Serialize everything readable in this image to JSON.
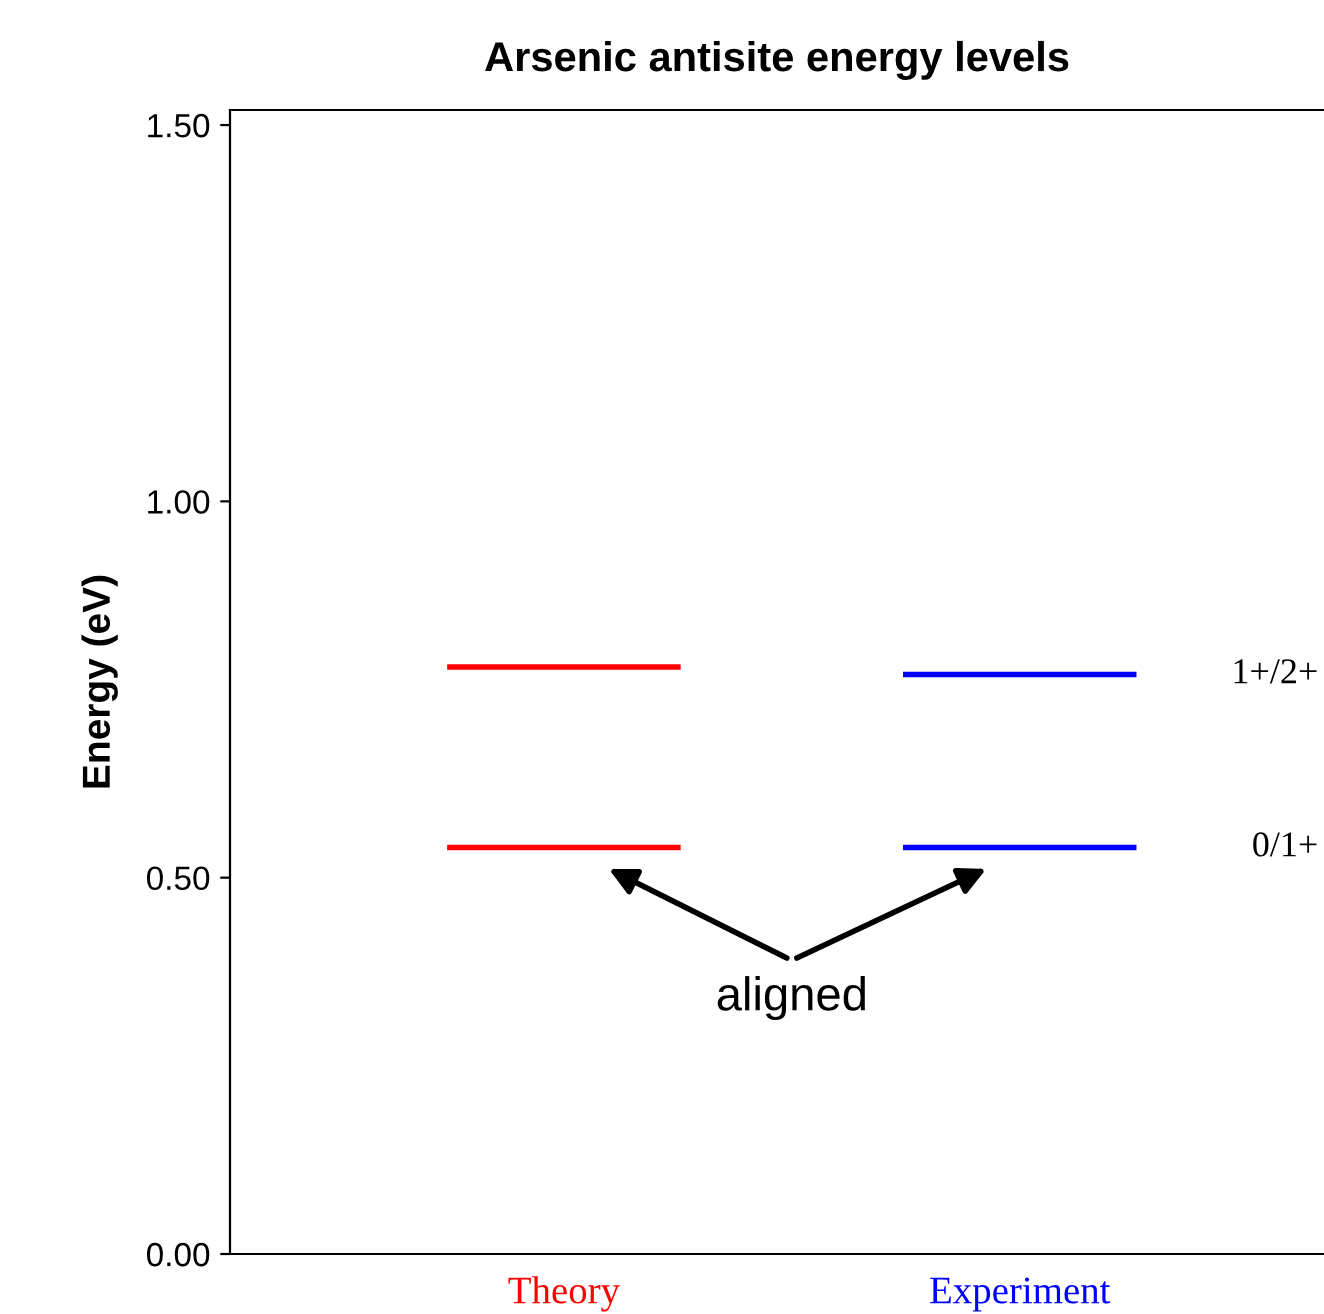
{
  "chart_data": {
    "type": "line",
    "title": "Arsenic antisite energy levels",
    "ylabel": "Energy (eV)",
    "categories": [
      null,
      "Theory",
      null,
      null,
      null,
      "Experiment",
      null
    ],
    "series": [
      {
        "color": "#ff0000",
        "values": [
          0.78,
          0.78,
          0.78,
          null,
          null,
          null,
          null
        ]
      },
      {
        "color": "#ff0000",
        "values": [
          0.54,
          0.54,
          0.54,
          null,
          null,
          null,
          null
        ]
      },
      {
        "name": "1+/2+",
        "color": "#0000ff",
        "values": [
          null,
          null,
          null,
          null,
          0.77,
          0.77,
          0.77
        ]
      },
      {
        "name": "0/1+",
        "color": "#0000ff",
        "values": [
          null,
          null,
          null,
          null,
          0.54,
          0.54,
          0.54
        ]
      }
    ],
    "ylim": [
      0,
      1.52
    ],
    "yticks": [
      {
        "value": 0,
        "label": "0.00"
      },
      {
        "value": 0.5,
        "label": "0.50"
      },
      {
        "value": 1,
        "label": "1.00"
      },
      {
        "value": 1.5,
        "label": "1.50"
      }
    ],
    "annotations": [
      "aligned"
    ],
    "marker": "none",
    "line_style": "solid",
    "grid": false,
    "legend": false
  }
}
